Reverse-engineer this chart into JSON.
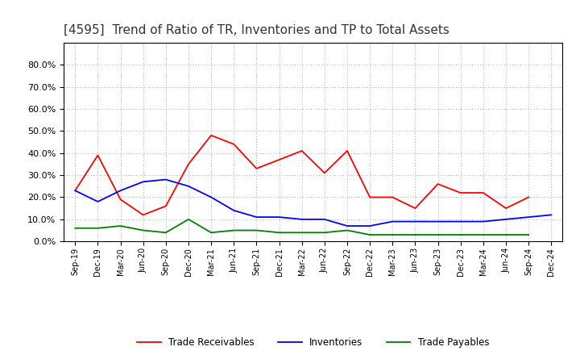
{
  "title": "[4595]  Trend of Ratio of TR, Inventories and TP to Total Assets",
  "x_labels": [
    "Sep-19",
    "Dec-19",
    "Mar-20",
    "Jun-20",
    "Sep-20",
    "Dec-20",
    "Mar-21",
    "Jun-21",
    "Sep-21",
    "Dec-21",
    "Mar-22",
    "Jun-22",
    "Sep-22",
    "Dec-22",
    "Mar-23",
    "Jun-23",
    "Sep-23",
    "Dec-23",
    "Mar-24",
    "Jun-24",
    "Sep-24",
    "Dec-24"
  ],
  "trade_receivables": [
    0.23,
    0.39,
    0.19,
    0.12,
    0.16,
    0.35,
    0.48,
    0.44,
    0.33,
    0.37,
    0.41,
    0.31,
    0.41,
    0.2,
    0.2,
    0.15,
    0.26,
    0.22,
    0.22,
    0.15,
    0.2,
    null
  ],
  "inventories": [
    0.23,
    0.18,
    0.23,
    0.27,
    0.28,
    0.25,
    0.2,
    0.14,
    0.11,
    0.11,
    0.1,
    0.1,
    0.07,
    0.07,
    0.09,
    0.09,
    0.09,
    0.09,
    0.09,
    0.1,
    0.11,
    0.12
  ],
  "trade_payables": [
    0.06,
    0.06,
    0.07,
    0.05,
    0.04,
    0.1,
    0.04,
    0.05,
    0.05,
    0.04,
    0.04,
    0.04,
    0.05,
    0.03,
    0.03,
    0.03,
    0.03,
    0.03,
    0.03,
    0.03,
    0.03,
    null
  ],
  "tr_color": "#ff0000",
  "inv_color": "#0000ff",
  "tp_color": "#008000",
  "ylim_max": 0.9,
  "yticks": [
    0.0,
    0.1,
    0.2,
    0.3,
    0.4,
    0.5,
    0.6,
    0.7,
    0.8
  ],
  "background_color": "#ffffff",
  "grid_color": "#aaaaaa",
  "title_fontsize": 11
}
